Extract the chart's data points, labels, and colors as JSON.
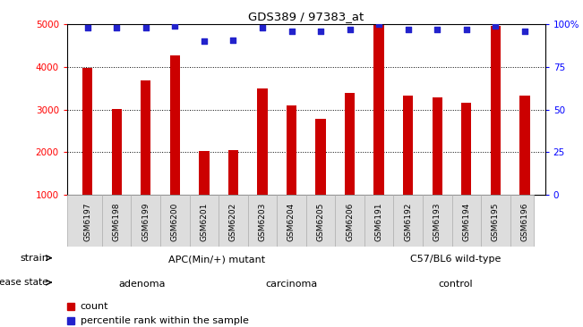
{
  "title": "GDS389 / 97383_at",
  "samples": [
    "GSM6197",
    "GSM6198",
    "GSM6199",
    "GSM6200",
    "GSM6201",
    "GSM6202",
    "GSM6203",
    "GSM6204",
    "GSM6205",
    "GSM6206",
    "GSM6191",
    "GSM6192",
    "GSM6193",
    "GSM6194",
    "GSM6195",
    "GSM6196"
  ],
  "counts": [
    3980,
    3010,
    3680,
    4280,
    2020,
    2050,
    3490,
    3100,
    2790,
    3400,
    4980,
    3330,
    3290,
    3160,
    4970,
    3320
  ],
  "percentile_ranks": [
    98,
    98,
    98,
    99,
    90,
    91,
    98,
    96,
    96,
    97,
    100,
    97,
    97,
    97,
    99,
    96
  ],
  "bar_color": "#cc0000",
  "dot_color": "#2222cc",
  "ylim_left": [
    1000,
    5000
  ],
  "ylim_right": [
    0,
    100
  ],
  "yticks_left": [
    1000,
    2000,
    3000,
    4000,
    5000
  ],
  "yticks_right": [
    0,
    25,
    50,
    75,
    100
  ],
  "strain_labels": [
    {
      "text": "APC(Min/+) mutant",
      "start": 0,
      "end": 10,
      "color": "#bbeebb"
    },
    {
      "text": "C57/BL6 wild-type",
      "start": 10,
      "end": 16,
      "color": "#44cc44"
    }
  ],
  "disease_labels": [
    {
      "text": "adenoma",
      "start": 0,
      "end": 5,
      "color": "#f0c8f0"
    },
    {
      "text": "carcinoma",
      "start": 5,
      "end": 10,
      "color": "#e090e0"
    },
    {
      "text": "control",
      "start": 10,
      "end": 16,
      "color": "#ee88ee"
    }
  ],
  "legend_count_color": "#cc0000",
  "legend_dot_color": "#2222cc",
  "background_color": "#ffffff",
  "ticklabel_bg": "#dddddd"
}
